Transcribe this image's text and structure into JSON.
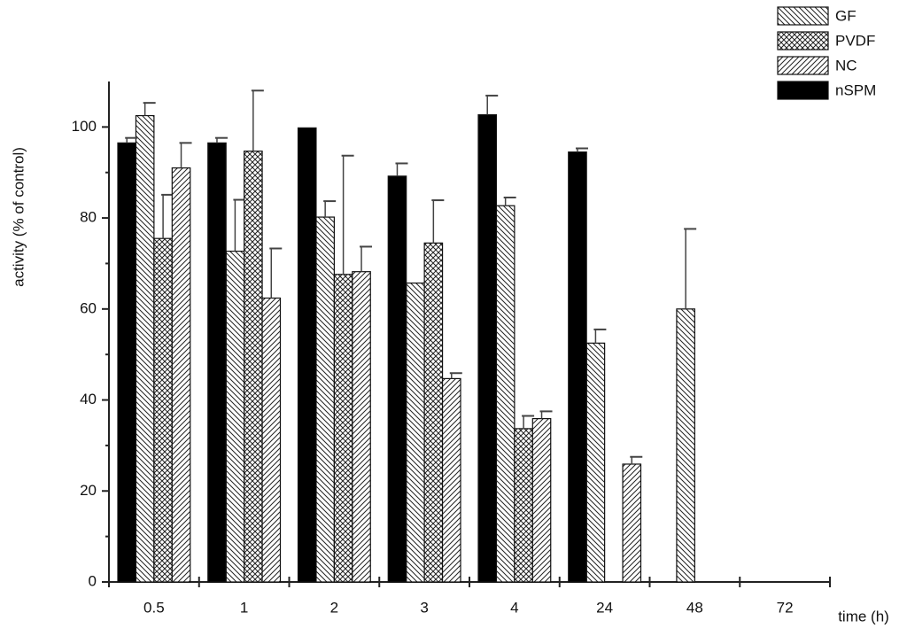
{
  "chart_data": {
    "type": "bar",
    "y_label": "activity (% of control)",
    "x_label": "time (h)",
    "categories": [
      "0.5",
      "1",
      "2",
      "3",
      "4",
      "24",
      "48",
      "72"
    ],
    "series": [
      {
        "name": "GF",
        "color": "#000000",
        "pattern": "diagonal-down",
        "values": [
          102.5,
          72.7,
          80.2,
          65.7,
          82.7,
          52.5,
          60,
          null
        ],
        "errors": [
          2.8,
          11.3,
          3.5,
          null,
          1.8,
          3.0,
          17.6,
          null
        ]
      },
      {
        "name": "PVDF",
        "color": "#000000",
        "pattern": "crosshatch",
        "values": [
          75.5,
          94.7,
          67.6,
          74.5,
          33.7,
          null,
          null,
          null
        ],
        "errors": [
          9.6,
          13.3,
          26.1,
          9.4,
          2.8,
          null,
          null,
          null
        ]
      },
      {
        "name": "NC",
        "color": "#000000",
        "pattern": "diagonal-up",
        "values": [
          91,
          62.4,
          68.2,
          44.7,
          35.9,
          25.9,
          null,
          null
        ],
        "errors": [
          5.5,
          10.9,
          5.5,
          1.2,
          1.6,
          1.6,
          null,
          null
        ]
      },
      {
        "name": "nSPM",
        "color": "#000000",
        "pattern": "solid",
        "values": [
          96.5,
          96.5,
          99.8,
          89.2,
          102.7,
          94.5,
          null,
          null
        ],
        "errors": [
          1.1,
          1.1,
          null,
          2.8,
          4.2,
          0.8,
          null,
          null
        ]
      }
    ],
    "ylim": [
      0,
      110
    ],
    "yticks": [
      0,
      20,
      40,
      60,
      80,
      100
    ],
    "legend": "top-right",
    "grid": false
  }
}
